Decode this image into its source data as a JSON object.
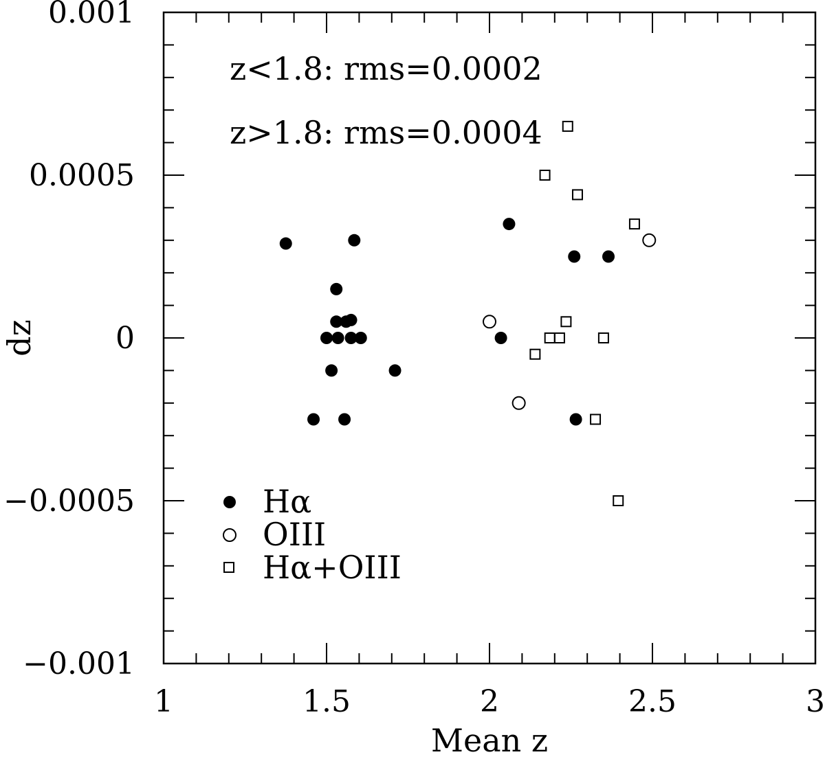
{
  "chart_data": {
    "type": "scatter",
    "xlabel": "Mean z",
    "ylabel": "dz",
    "xlim": [
      1,
      3
    ],
    "ylim": [
      -0.001,
      0.001
    ],
    "xticks": [
      1,
      1.5,
      2,
      2.5,
      3
    ],
    "xtick_labels": [
      "1",
      "1.5",
      "2",
      "2.5",
      "3"
    ],
    "yticks": [
      -0.001,
      -0.0005,
      0,
      0.0005,
      0.001
    ],
    "ytick_labels": [
      "−0.001",
      "−0.0005",
      "0",
      "0.0005",
      "0.001"
    ],
    "grid": false,
    "legend_position": "bottom-left",
    "annotations": [
      "z<1.8: rms=0.0002",
      "z>1.8: rms=0.0004"
    ],
    "series": [
      {
        "name": "Hα",
        "marker": "filled-circle",
        "points": [
          [
            1.375,
            0.00029
          ],
          [
            1.46,
            -0.00025
          ],
          [
            1.5,
            0.0
          ],
          [
            1.515,
            -0.0001
          ],
          [
            1.53,
            0.00015
          ],
          [
            1.53,
            5e-05
          ],
          [
            1.535,
            0.0
          ],
          [
            1.555,
            -0.00025
          ],
          [
            1.56,
            5e-05
          ],
          [
            1.575,
            5.5e-05
          ],
          [
            1.575,
            0.0
          ],
          [
            1.605,
            0.0
          ],
          [
            1.585,
            0.0003
          ],
          [
            1.71,
            -0.0001
          ],
          [
            2.035,
            0.0
          ],
          [
            2.06,
            0.00035
          ],
          [
            2.26,
            0.00025
          ],
          [
            2.265,
            -0.00025
          ],
          [
            2.365,
            0.00025
          ]
        ]
      },
      {
        "name": "OIII",
        "marker": "open-circle",
        "points": [
          [
            2.0,
            5e-05
          ],
          [
            2.09,
            -0.0002
          ],
          [
            2.49,
            0.0003
          ]
        ]
      },
      {
        "name": "Hα+OIII",
        "marker": "open-square",
        "points": [
          [
            2.14,
            -5e-05
          ],
          [
            2.17,
            0.0005
          ],
          [
            2.185,
            0.0
          ],
          [
            2.215,
            0.0
          ],
          [
            2.235,
            5e-05
          ],
          [
            2.24,
            0.00065
          ],
          [
            2.27,
            0.00044
          ],
          [
            2.325,
            -0.00025
          ],
          [
            2.35,
            0.0
          ],
          [
            2.395,
            -0.0005
          ],
          [
            2.445,
            0.00035
          ]
        ]
      }
    ]
  }
}
